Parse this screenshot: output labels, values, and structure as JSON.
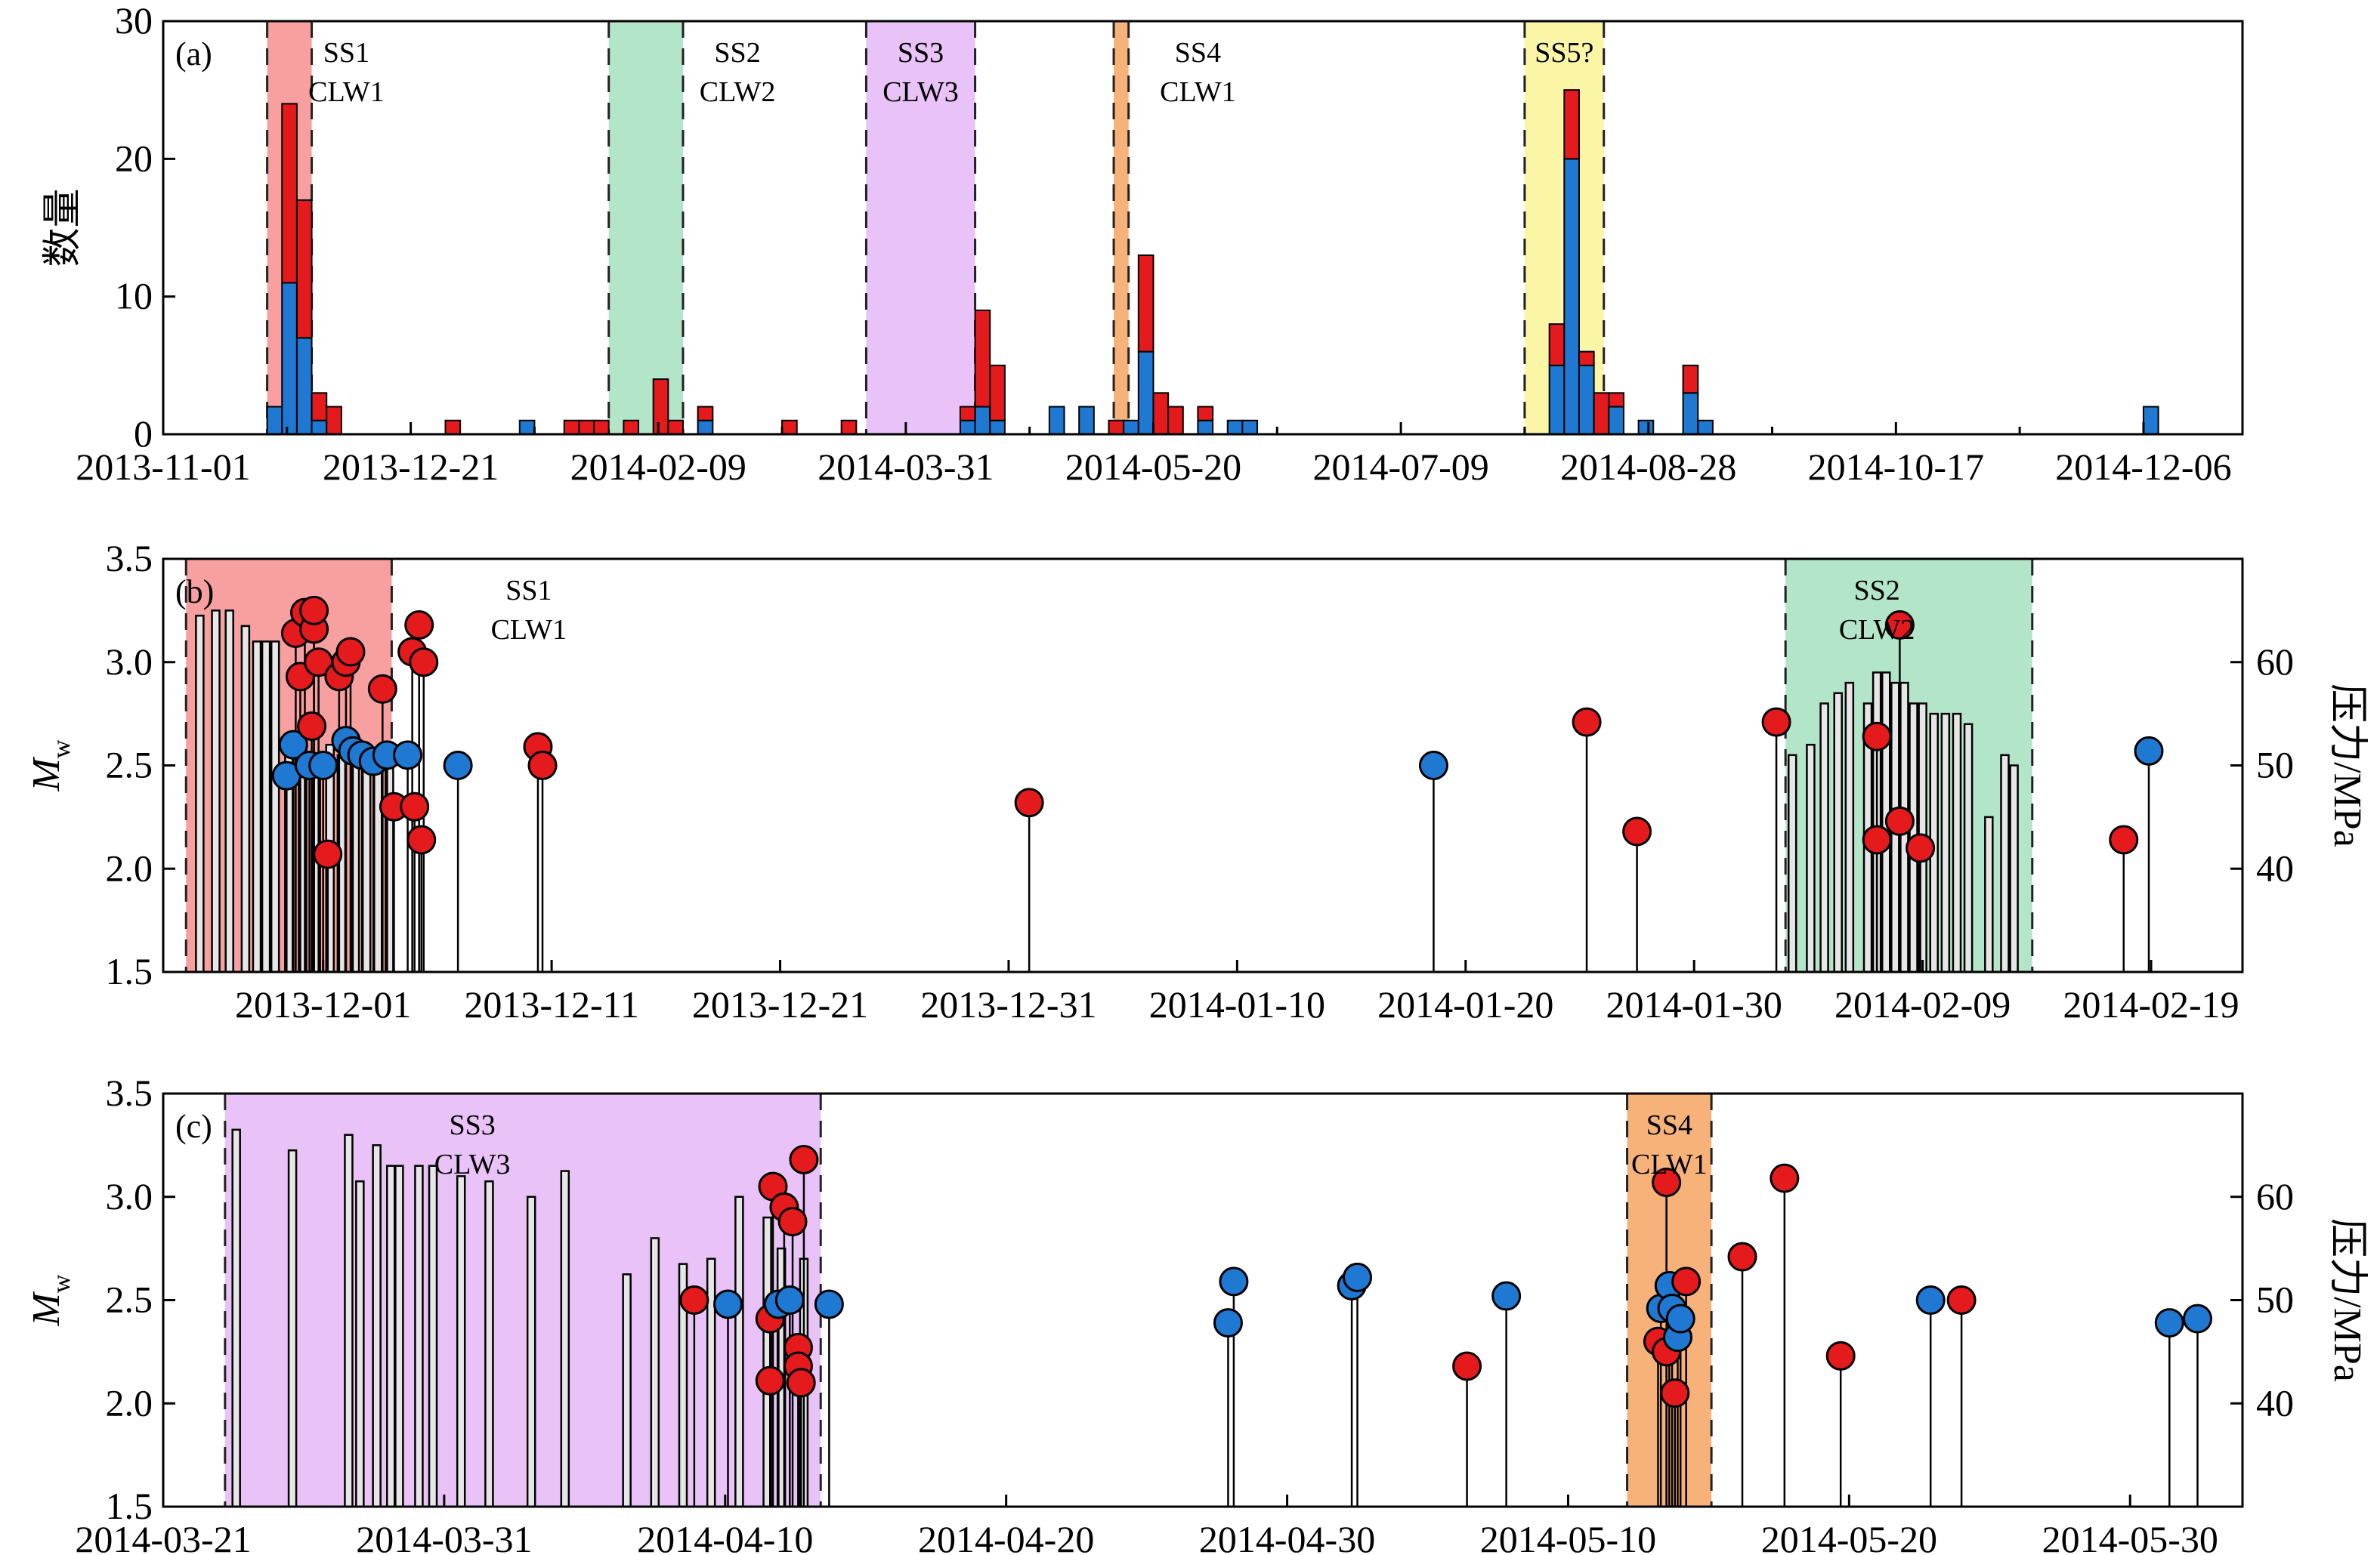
{
  "colors": {
    "red": "#e41a1c",
    "blue": "#1f78d1",
    "ss1_fill": "#f8a0a0",
    "ss2_fill": "#b3e6c9",
    "ss3_fill": "#e9c2f7",
    "ss4_fill": "#f7b27a",
    "ss5_fill": "#fbf5a6",
    "ss1_text": "#cc0000",
    "ss2_text": "#2e8b57",
    "ss3_text": "#9b30c8",
    "ss4_text": "#d2691e",
    "ss5_text": "#c8b400",
    "pressure_bar": "#e6e6e6"
  },
  "chart_data": [
    {
      "panel": "a",
      "panel_label": "(a)",
      "type": "bar",
      "stacked": true,
      "ylabel": "数量",
      "ylim": [
        0,
        30
      ],
      "yticks": [
        0,
        10,
        20,
        30
      ],
      "xlim": [
        "2013-11-01",
        "2014-12-26"
      ],
      "xticks": [
        "2013-11-01",
        "2013-12-21",
        "2014-02-09",
        "2014-03-31",
        "2014-05-20",
        "2014-07-09",
        "2014-08-28",
        "2014-10-17",
        "2014-12-06"
      ],
      "bin_days": 3,
      "series_bins": [
        {
          "start": "2013-11-22",
          "blue": 2,
          "red": 0
        },
        {
          "start": "2013-11-25",
          "blue": 11,
          "red": 13
        },
        {
          "start": "2013-11-28",
          "blue": 7,
          "red": 10
        },
        {
          "start": "2013-12-01",
          "blue": 1,
          "red": 2
        },
        {
          "start": "2013-12-04",
          "blue": 0,
          "red": 2
        },
        {
          "start": "2013-12-28",
          "blue": 0,
          "red": 1
        },
        {
          "start": "2014-01-12",
          "blue": 1,
          "red": 0
        },
        {
          "start": "2014-01-21",
          "blue": 0,
          "red": 1
        },
        {
          "start": "2014-01-24",
          "blue": 0,
          "red": 1
        },
        {
          "start": "2014-01-27",
          "blue": 0,
          "red": 1
        },
        {
          "start": "2014-02-02",
          "blue": 0,
          "red": 1
        },
        {
          "start": "2014-02-08",
          "blue": 0,
          "red": 4
        },
        {
          "start": "2014-02-11",
          "blue": 0,
          "red": 1
        },
        {
          "start": "2014-02-17",
          "blue": 1,
          "red": 1
        },
        {
          "start": "2014-03-06",
          "blue": 0,
          "red": 1
        },
        {
          "start": "2014-03-18",
          "blue": 0,
          "red": 1
        },
        {
          "start": "2014-04-11",
          "blue": 1,
          "red": 1
        },
        {
          "start": "2014-04-14",
          "blue": 2,
          "red": 7
        },
        {
          "start": "2014-04-17",
          "blue": 1,
          "red": 4
        },
        {
          "start": "2014-04-29",
          "blue": 2,
          "red": 0
        },
        {
          "start": "2014-05-05",
          "blue": 2,
          "red": 0
        },
        {
          "start": "2014-05-11",
          "blue": 0,
          "red": 1
        },
        {
          "start": "2014-05-14",
          "blue": 1,
          "red": 0
        },
        {
          "start": "2014-05-17",
          "blue": 6,
          "red": 7
        },
        {
          "start": "2014-05-20",
          "blue": 0,
          "red": 3
        },
        {
          "start": "2014-05-23",
          "blue": 0,
          "red": 2
        },
        {
          "start": "2014-05-29",
          "blue": 1,
          "red": 1
        },
        {
          "start": "2014-06-04",
          "blue": 1,
          "red": 0
        },
        {
          "start": "2014-06-07",
          "blue": 1,
          "red": 0
        },
        {
          "start": "2014-08-08",
          "blue": 5,
          "red": 3
        },
        {
          "start": "2014-08-11",
          "blue": 20,
          "red": 5
        },
        {
          "start": "2014-08-14",
          "blue": 5,
          "red": 1
        },
        {
          "start": "2014-08-17",
          "blue": 0,
          "red": 3
        },
        {
          "start": "2014-08-20",
          "blue": 2,
          "red": 1
        },
        {
          "start": "2014-08-26",
          "blue": 1,
          "red": 0
        },
        {
          "start": "2014-09-04",
          "blue": 3,
          "red": 2
        },
        {
          "start": "2014-09-07",
          "blue": 1,
          "red": 0
        },
        {
          "start": "2014-12-06",
          "blue": 2,
          "red": 0
        }
      ],
      "stages": [
        {
          "start": "2013-11-22",
          "end": "2013-12-01",
          "fill": "ss1_fill",
          "text_color": "ss1_text",
          "line1": "SS1",
          "line2": "CLW1",
          "label_at": "2013-12-08"
        },
        {
          "start": "2014-01-30",
          "end": "2014-02-14",
          "fill": "ss2_fill",
          "text_color": "ss2_text",
          "line1": "SS2",
          "line2": "CLW2",
          "label_at": "2014-02-25"
        },
        {
          "start": "2014-03-23",
          "end": "2014-04-14",
          "fill": "ss3_fill",
          "text_color": "ss3_text",
          "line1": "SS3",
          "line2": "CLW3",
          "label_at": "2014-04-03"
        },
        {
          "start": "2014-05-12",
          "end": "2014-05-15",
          "fill": "ss4_fill",
          "text_color": "ss4_text",
          "line1": "SS4",
          "line2": "CLW1",
          "label_at": "2014-05-29"
        },
        {
          "start": "2014-08-03",
          "end": "2014-08-19",
          "fill": "ss5_fill",
          "text_color": "ss5_text",
          "line1": "SS5?",
          "line2": "",
          "label_at": "2014-08-11"
        }
      ]
    },
    {
      "panel": "b",
      "panel_label": "(b)",
      "type": "scatter",
      "ylabel": "M",
      "ylabel_sub": "w",
      "y2label": "压力/MPa",
      "ylim": [
        1.5,
        3.5
      ],
      "yticks": [
        1.5,
        2.0,
        2.5,
        3.0,
        3.5
      ],
      "y2lim": [
        30,
        70
      ],
      "y2ticks": [
        40,
        50,
        60
      ],
      "xlim": [
        "2013-11-24",
        "2014-02-23"
      ],
      "xticks": [
        "2013-12-01",
        "2013-12-11",
        "2013-12-21",
        "2013-12-31",
        "2014-01-10",
        "2014-01-20",
        "2014-01-30",
        "2014-02-09",
        "2014-02-19"
      ],
      "stages": [
        {
          "start": "2013-11-25",
          "end": "2013-12-04",
          "fill": "ss1_fill",
          "text_color": "ss1_text",
          "line1": "SS1",
          "line2": "CLW1",
          "label_at": "2013-12-10"
        },
        {
          "start": "2014-02-03",
          "end": "2014-02-13.8",
          "fill": "ss2_fill",
          "text_color": "ss2_text",
          "line1": "SS2",
          "line2": "CLW2",
          "label_at": "2014-02-07"
        }
      ],
      "pressure_bars": [
        {
          "t": "2013-11-25.6",
          "p": 64.5
        },
        {
          "t": "2013-11-26.3",
          "p": 65
        },
        {
          "t": "2013-11-26.9",
          "p": 65
        },
        {
          "t": "2013-11-27.6",
          "p": 63.5
        },
        {
          "t": "2013-11-28.1",
          "p": 62
        },
        {
          "t": "2013-11-28.5",
          "p": 62
        },
        {
          "t": "2013-11-28.9",
          "p": 62
        },
        {
          "t": "2013-11-29.5",
          "p": 52
        },
        {
          "t": "2013-11-30.1",
          "p": 54
        },
        {
          "t": "2013-11-30.7",
          "p": 50
        },
        {
          "t": "2013-12-01.3",
          "p": 52
        },
        {
          "t": "2013-12-01.8",
          "p": 51
        },
        {
          "t": "2013-12-02.4",
          "p": 50
        },
        {
          "t": "2013-12-02.9",
          "p": 51
        },
        {
          "t": "2013-12-03.4",
          "p": 50
        },
        {
          "t": "2013-12-03.9",
          "p": 52
        },
        {
          "t": "2014-02-03.3",
          "p": 51
        },
        {
          "t": "2014-02-04.1",
          "p": 52
        },
        {
          "t": "2014-02-04.7",
          "p": 56
        },
        {
          "t": "2014-02-05.3",
          "p": 57
        },
        {
          "t": "2014-02-05.8",
          "p": 58
        },
        {
          "t": "2014-02-06.6",
          "p": 56
        },
        {
          "t": "2014-02-07.0",
          "p": 59
        },
        {
          "t": "2014-02-07.4",
          "p": 59
        },
        {
          "t": "2014-02-07.8",
          "p": 58
        },
        {
          "t": "2014-02-08.2",
          "p": 58
        },
        {
          "t": "2014-02-08.6",
          "p": 56
        },
        {
          "t": "2014-02-09.0",
          "p": 56
        },
        {
          "t": "2014-02-09.5",
          "p": 55
        },
        {
          "t": "2014-02-10.0",
          "p": 55
        },
        {
          "t": "2014-02-10.5",
          "p": 55
        },
        {
          "t": "2014-02-11.0",
          "p": 54
        },
        {
          "t": "2014-02-11.9",
          "p": 45
        },
        {
          "t": "2014-02-12.6",
          "p": 51
        },
        {
          "t": "2014-02-13.0",
          "p": 50
        }
      ],
      "events": [
        {
          "t": "2013-11-29.4",
          "mw": 2.45,
          "c": "blue"
        },
        {
          "t": "2013-11-29.7",
          "mw": 2.6,
          "c": "blue"
        },
        {
          "t": "2013-11-29.8",
          "mw": 3.14,
          "c": "red"
        },
        {
          "t": "2013-11-30.0",
          "mw": 2.93,
          "c": "red"
        },
        {
          "t": "2013-11-30.2",
          "mw": 3.24,
          "c": "red"
        },
        {
          "t": "2013-11-30.4",
          "mw": 2.5,
          "c": "blue"
        },
        {
          "t": "2013-11-30.5",
          "mw": 2.69,
          "c": "red"
        },
        {
          "t": "2013-11-30.6",
          "mw": 3.16,
          "c": "red"
        },
        {
          "t": "2013-11-30.6",
          "mw": 3.25,
          "c": "red"
        },
        {
          "t": "2013-11-30.8",
          "mw": 3.0,
          "c": "red"
        },
        {
          "t": "2013-12-01.0",
          "mw": 2.5,
          "c": "blue"
        },
        {
          "t": "2013-12-01.2",
          "mw": 2.07,
          "c": "red"
        },
        {
          "t": "2013-12-01.7",
          "mw": 2.93,
          "c": "red"
        },
        {
          "t": "2013-12-02.0",
          "mw": 3.0,
          "c": "red"
        },
        {
          "t": "2013-12-02.2",
          "mw": 3.05,
          "c": "red"
        },
        {
          "t": "2013-12-02.0",
          "mw": 2.62,
          "c": "blue"
        },
        {
          "t": "2013-12-02.3",
          "mw": 2.57,
          "c": "blue"
        },
        {
          "t": "2013-12-02.7",
          "mw": 2.55,
          "c": "blue"
        },
        {
          "t": "2013-12-03.2",
          "mw": 2.52,
          "c": "blue"
        },
        {
          "t": "2013-12-03.6",
          "mw": 2.87,
          "c": "red"
        },
        {
          "t": "2013-12-03.8",
          "mw": 2.55,
          "c": "blue"
        },
        {
          "t": "2013-12-04.1",
          "mw": 2.3,
          "c": "red"
        },
        {
          "t": "2013-12-04.7",
          "mw": 2.55,
          "c": "blue"
        },
        {
          "t": "2013-12-04.9",
          "mw": 3.05,
          "c": "red"
        },
        {
          "t": "2013-12-05.0",
          "mw": 2.3,
          "c": "red"
        },
        {
          "t": "2013-12-05.2",
          "mw": 3.18,
          "c": "red"
        },
        {
          "t": "2013-12-05.3",
          "mw": 2.14,
          "c": "red"
        },
        {
          "t": "2013-12-05.4",
          "mw": 3.0,
          "c": "red"
        },
        {
          "t": "2013-12-06.9",
          "mw": 2.5,
          "c": "blue"
        },
        {
          "t": "2013-12-10.4",
          "mw": 2.59,
          "c": "red"
        },
        {
          "t": "2013-12-10.6",
          "mw": 2.5,
          "c": "red"
        },
        {
          "t": "2013-12-31.9",
          "mw": 2.32,
          "c": "red"
        },
        {
          "t": "2014-01-18.6",
          "mw": 2.5,
          "c": "blue"
        },
        {
          "t": "2014-01-25.3",
          "mw": 2.71,
          "c": "red"
        },
        {
          "t": "2014-01-27.5",
          "mw": 2.18,
          "c": "red"
        },
        {
          "t": "2014-02-02.6",
          "mw": 2.71,
          "c": "red"
        },
        {
          "t": "2014-02-07.0",
          "mw": 2.64,
          "c": "red"
        },
        {
          "t": "2014-02-07.0",
          "mw": 2.14,
          "c": "red"
        },
        {
          "t": "2014-02-08.0",
          "mw": 2.23,
          "c": "red"
        },
        {
          "t": "2014-02-08.0",
          "mw": 3.18,
          "c": "red"
        },
        {
          "t": "2014-02-08.9",
          "mw": 2.1,
          "c": "red"
        },
        {
          "t": "2014-02-17.8",
          "mw": 2.14,
          "c": "red"
        },
        {
          "t": "2014-02-18.9",
          "mw": 2.57,
          "c": "blue"
        }
      ]
    },
    {
      "panel": "c",
      "panel_label": "(c)",
      "type": "scatter",
      "ylabel": "M",
      "ylabel_sub": "w",
      "y2label": "压力/MPa",
      "ylim": [
        1.5,
        3.5
      ],
      "yticks": [
        1.5,
        2.0,
        2.5,
        3.0,
        3.5
      ],
      "y2lim": [
        30,
        70
      ],
      "y2ticks": [
        40,
        50,
        60
      ],
      "xlim": [
        "2014-03-21",
        "2014-06-03"
      ],
      "xticks": [
        "2014-03-21",
        "2014-03-31",
        "2014-04-10",
        "2014-04-20",
        "2014-04-30",
        "2014-05-10",
        "2014-05-20",
        "2014-05-30"
      ],
      "stages": [
        {
          "start": "2014-03-23.2",
          "end": "2014-04-13.4",
          "fill": "ss3_fill",
          "text_color": "ss3_text",
          "line1": "SS3",
          "line2": "CLW3",
          "label_at": "2014-04-01"
        },
        {
          "start": "2014-05-12.1",
          "end": "2014-05-15.1",
          "fill": "ss4_fill",
          "text_color": "ss4_text",
          "line1": "SS4",
          "line2": "CLW1",
          "label_at": "2014-05-13.6"
        }
      ],
      "pressure_bars": [
        {
          "t": "2014-03-23.6",
          "p": 66.5
        },
        {
          "t": "2014-03-25.6",
          "p": 64.5
        },
        {
          "t": "2014-03-27.6",
          "p": 66
        },
        {
          "t": "2014-03-28.0",
          "p": 61.5
        },
        {
          "t": "2014-03-28.6",
          "p": 65
        },
        {
          "t": "2014-03-29.1",
          "p": 63
        },
        {
          "t": "2014-03-29.4",
          "p": 63
        },
        {
          "t": "2014-03-30.1",
          "p": 63
        },
        {
          "t": "2014-03-30.6",
          "p": 63
        },
        {
          "t": "2014-03-31.6",
          "p": 62
        },
        {
          "t": "2014-04-01.6",
          "p": 61.5
        },
        {
          "t": "2014-04-03.1",
          "p": 60
        },
        {
          "t": "2014-04-04.3",
          "p": 62.5
        },
        {
          "t": "2014-04-06.5",
          "p": 52.5
        },
        {
          "t": "2014-04-07.5",
          "p": 56
        },
        {
          "t": "2014-04-08.5",
          "p": 53.5
        },
        {
          "t": "2014-04-09.5",
          "p": 54
        },
        {
          "t": "2014-04-10.5",
          "p": 60
        },
        {
          "t": "2014-04-11.5",
          "p": 58
        },
        {
          "t": "2014-04-12.0",
          "p": 55
        },
        {
          "t": "2014-04-12.8",
          "p": 54
        }
      ],
      "events": [
        {
          "t": "2014-04-08.9",
          "mw": 2.5,
          "c": "red"
        },
        {
          "t": "2014-04-10.1",
          "mw": 2.48,
          "c": "blue"
        },
        {
          "t": "2014-04-11.6",
          "mw": 2.11,
          "c": "red"
        },
        {
          "t": "2014-04-11.6",
          "mw": 2.41,
          "c": "red"
        },
        {
          "t": "2014-04-11.7",
          "mw": 3.05,
          "c": "red"
        },
        {
          "t": "2014-04-11.9",
          "mw": 2.48,
          "c": "blue"
        },
        {
          "t": "2014-04-12.1",
          "mw": 2.95,
          "c": "red"
        },
        {
          "t": "2014-04-12.3",
          "mw": 2.5,
          "c": "blue"
        },
        {
          "t": "2014-04-12.4",
          "mw": 2.88,
          "c": "red"
        },
        {
          "t": "2014-04-12.6",
          "mw": 2.27,
          "c": "red"
        },
        {
          "t": "2014-04-12.6",
          "mw": 2.18,
          "c": "red"
        },
        {
          "t": "2014-04-12.7",
          "mw": 2.1,
          "c": "red"
        },
        {
          "t": "2014-04-12.8",
          "mw": 3.18,
          "c": "red"
        },
        {
          "t": "2014-04-13.7",
          "mw": 2.48,
          "c": "blue"
        },
        {
          "t": "2014-04-27.9",
          "mw": 2.39,
          "c": "blue"
        },
        {
          "t": "2014-04-28.1",
          "mw": 2.59,
          "c": "blue"
        },
        {
          "t": "2014-05-02.3",
          "mw": 2.57,
          "c": "blue"
        },
        {
          "t": "2014-05-02.5",
          "mw": 2.61,
          "c": "blue"
        },
        {
          "t": "2014-05-06.4",
          "mw": 2.18,
          "c": "red"
        },
        {
          "t": "2014-05-07.8",
          "mw": 2.52,
          "c": "blue"
        },
        {
          "t": "2014-05-13.2",
          "mw": 2.3,
          "c": "red"
        },
        {
          "t": "2014-05-13.3",
          "mw": 2.46,
          "c": "blue"
        },
        {
          "t": "2014-05-13.5",
          "mw": 3.07,
          "c": "red"
        },
        {
          "t": "2014-05-13.5",
          "mw": 2.25,
          "c": "red"
        },
        {
          "t": "2014-05-13.6",
          "mw": 2.57,
          "c": "blue"
        },
        {
          "t": "2014-05-13.7",
          "mw": 2.46,
          "c": "blue"
        },
        {
          "t": "2014-05-13.8",
          "mw": 2.05,
          "c": "red"
        },
        {
          "t": "2014-05-13.9",
          "mw": 2.32,
          "c": "blue"
        },
        {
          "t": "2014-05-14.0",
          "mw": 2.41,
          "c": "blue"
        },
        {
          "t": "2014-05-14.2",
          "mw": 2.59,
          "c": "red"
        },
        {
          "t": "2014-05-16.2",
          "mw": 2.71,
          "c": "red"
        },
        {
          "t": "2014-05-17.7",
          "mw": 3.09,
          "c": "red"
        },
        {
          "t": "2014-05-19.7",
          "mw": 2.23,
          "c": "red"
        },
        {
          "t": "2014-05-22.9",
          "mw": 2.5,
          "c": "blue"
        },
        {
          "t": "2014-05-24.0",
          "mw": 2.5,
          "c": "red"
        },
        {
          "t": "2014-05-31.4",
          "mw": 2.39,
          "c": "blue"
        },
        {
          "t": "2014-06-01.4",
          "mw": 2.41,
          "c": "blue"
        }
      ]
    }
  ]
}
